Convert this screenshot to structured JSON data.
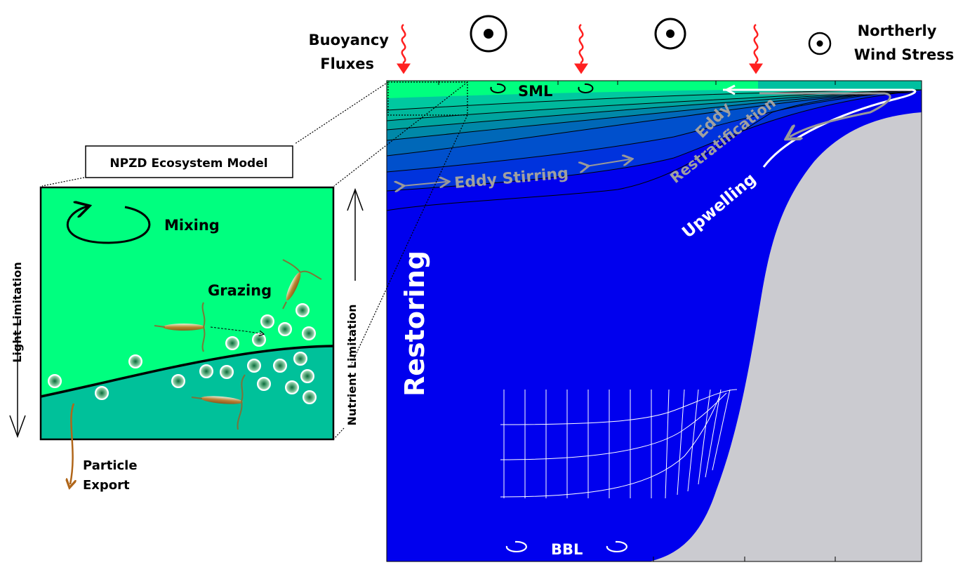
{
  "top": {
    "buoyancy_line1": "Buoyancy",
    "buoyancy_line2": "Fluxes",
    "wind_line1": "Northerly",
    "wind_line2": "Wind Stress"
  },
  "main": {
    "sml": "SML",
    "eddy_stirring": "Eddy Stirring",
    "eddy": "Eddy",
    "restratification": "Restratification",
    "upwelling": "Upwelling",
    "restoring": "Restoring",
    "bbl": "BBL"
  },
  "inset": {
    "title": "NPZD Ecosystem Model",
    "mixing": "Mixing",
    "grazing": "Grazing",
    "light_limitation": "Light Limitation",
    "nutrient_limitation": "Nutrient Limitation",
    "particle_line1": "Particle",
    "particle_line2": "Export"
  },
  "colors": {
    "sml_green": "#00ff7f",
    "deep_blue": "#0000ee",
    "land_gray": "#cbcbd0",
    "inset_teal": "#00c19a",
    "label_gray": "#a0a0a0",
    "flux_red": "#ff2020"
  }
}
